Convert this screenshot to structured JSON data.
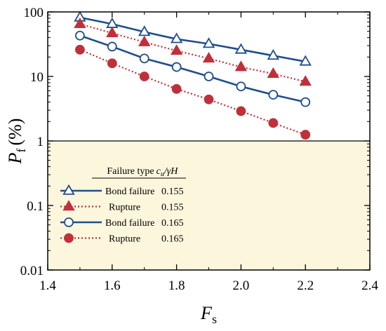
{
  "chart_data": {
    "type": "line",
    "xlabel": "F",
    "xlabel_sub": "s",
    "ylabel": "P",
    "ylabel_sub": "f",
    "ylabel_unit": "(%)",
    "xlim": [
      1.4,
      2.4
    ],
    "ylim": [
      0.01,
      100
    ],
    "y_scale": "log",
    "x_ticks": [
      1.4,
      1.6,
      1.8,
      2.0,
      2.2,
      2.4
    ],
    "x_tick_labels": [
      "1.4",
      "1.6",
      "1.8",
      "2.0",
      "2.2",
      "2.4"
    ],
    "y_ticks": [
      0.01,
      0.1,
      1,
      10,
      100
    ],
    "y_tick_labels": [
      "0.01",
      "0.1",
      "1",
      "10",
      "100"
    ],
    "shaded_region": {
      "y_from": 0.01,
      "y_to": 1,
      "color": "#fcf6dd"
    },
    "reference_line": {
      "y": 1
    },
    "legend": {
      "header_type": "Failure type",
      "header_ratio": "c",
      "header_ratio_sub": "u",
      "header_ratio_rest": "/γH",
      "placement": "bottom-left"
    },
    "series": [
      {
        "name": "Bond failure",
        "ratio": "0.155",
        "color": "#1f4e8c",
        "marker": "triangle",
        "filled": false,
        "dashed": false,
        "x": [
          1.5,
          1.6,
          1.7,
          1.8,
          1.9,
          2.0,
          2.1,
          2.2
        ],
        "y": [
          82,
          65,
          49,
          38,
          32,
          26,
          21,
          17
        ]
      },
      {
        "name": "Rupture",
        "ratio": "0.155",
        "color": "#c0303a",
        "marker": "triangle",
        "filled": true,
        "dashed": true,
        "x": [
          1.5,
          1.6,
          1.7,
          1.8,
          1.9,
          2.0,
          2.1,
          2.2
        ],
        "y": [
          65,
          47,
          34,
          25,
          19,
          14,
          11,
          8.3
        ]
      },
      {
        "name": "Bond failure",
        "ratio": "0.165",
        "color": "#1f4e8c",
        "marker": "circle",
        "filled": false,
        "dashed": false,
        "x": [
          1.5,
          1.6,
          1.7,
          1.8,
          1.9,
          2.0,
          2.1,
          2.2
        ],
        "y": [
          43,
          29,
          19,
          14,
          10,
          7,
          5.2,
          4
        ]
      },
      {
        "name": "Rupture",
        "ratio": "0.165",
        "color": "#c0303a",
        "marker": "circle",
        "filled": true,
        "dashed": true,
        "x": [
          1.5,
          1.6,
          1.7,
          1.8,
          1.9,
          2.0,
          2.1,
          2.2
        ],
        "y": [
          26,
          16,
          10,
          6.4,
          4.4,
          2.9,
          1.9,
          1.25
        ]
      }
    ]
  }
}
